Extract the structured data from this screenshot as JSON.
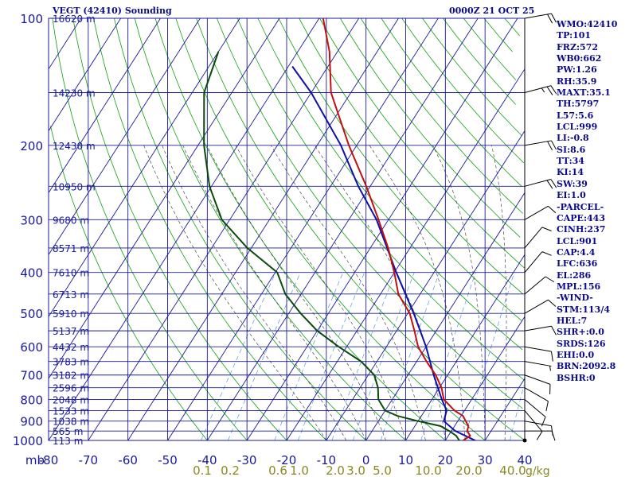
{
  "header": {
    "station": "VEGT (42410) Sounding",
    "time": "0000Z 21 OCT 25"
  },
  "indices": [
    "WMO:42410",
    "TP:101",
    "FRZ:572",
    "WB0:662",
    "PW:1.26",
    "RH:35.9",
    "MAXT:35.1",
    "TH:5797",
    "L57:5.6",
    "LCL:999",
    "LI:-0.8",
    "SI:8.6",
    "TT:34",
    "KI:14",
    "SW:39",
    "EI:1.0",
    "-PARCEL-",
    "CAPE:443",
    "CINH:237",
    "LCL:901",
    "CAP:4.4",
    "LFC:636",
    "EL:286",
    "MPL:156",
    "-WIND-",
    "STM:113/4",
    "HEL:7",
    "SHR+:0.0",
    "SRDS:126",
    "EHI:0.0",
    "BRN:2092.8",
    "BSHR:0"
  ],
  "colors": {
    "grid": "#1a1a9a",
    "axis_text": "#1a1a9a",
    "mixing_text": "#8a8a20",
    "dry_adiabat": "#10a010",
    "moist_adiabat": "#303030",
    "mixing_ratio": "#3a8ad8",
    "temperature": "#c01010",
    "dewpoint": "#0a4a0a",
    "parcel": "#1010a8",
    "wind": "#000000"
  },
  "chart_data": {
    "type": "skew-t",
    "x_unit_label": "mb",
    "pressure_levels": [
      100,
      200,
      300,
      400,
      500,
      600,
      700,
      800,
      900,
      1000
    ],
    "temperature_ticks": [
      -80,
      -70,
      -60,
      -50,
      -40,
      -30,
      -20,
      -10,
      0,
      10,
      20,
      30,
      40
    ],
    "temperature_range": [
      -80,
      40
    ],
    "pressure_range": [
      1000,
      100
    ],
    "height_labels": [
      {
        "p": 100,
        "label": "16620 m"
      },
      {
        "p": 150,
        "label": "14230 m"
      },
      {
        "p": 200,
        "label": "12430 m"
      },
      {
        "p": 250,
        "label": "10950 m"
      },
      {
        "p": 300,
        "label": "9680 m"
      },
      {
        "p": 350,
        "label": "8571 m"
      },
      {
        "p": 400,
        "label": "7610 m"
      },
      {
        "p": 450,
        "label": "6713 m"
      },
      {
        "p": 500,
        "label": "5910 m"
      },
      {
        "p": 550,
        "label": "5137 m"
      },
      {
        "p": 600,
        "label": "4432 m"
      },
      {
        "p": 650,
        "label": "3783 m"
      },
      {
        "p": 700,
        "label": "3182 m"
      },
      {
        "p": 750,
        "label": "2596 m"
      },
      {
        "p": 800,
        "label": "2048 m"
      },
      {
        "p": 850,
        "label": "1533 m"
      },
      {
        "p": 900,
        "label": "1038 m"
      },
      {
        "p": 950,
        "label": "565 m"
      },
      {
        "p": 1000,
        "label": "113 m"
      }
    ],
    "mixing_ratio_labels": [
      {
        "w": 0.1,
        "label": "0.1"
      },
      {
        "w": 0.2,
        "label": "0.2"
      },
      {
        "w": 0.6,
        "label": "0.6"
      },
      {
        "w": 1.0,
        "label": "1.0"
      },
      {
        "w": 2.0,
        "label": "2.0"
      },
      {
        "w": 3.0,
        "label": "3.0"
      },
      {
        "w": 5.0,
        "label": "5.0"
      },
      {
        "w": 10.0,
        "label": "10.0"
      },
      {
        "w": 20.0,
        "label": "20.0"
      },
      {
        "w": 40.0,
        "label": "40.0"
      }
    ],
    "mixing_ratio_unit": "g/kg",
    "temperature_profile": [
      {
        "p": 1000,
        "t": 24.5
      },
      {
        "p": 975,
        "t": 25.5
      },
      {
        "p": 950,
        "t": 24.0
      },
      {
        "p": 925,
        "t": 23.5
      },
      {
        "p": 900,
        "t": 22.0
      },
      {
        "p": 875,
        "t": 20.5
      },
      {
        "p": 850,
        "t": 17.5
      },
      {
        "p": 800,
        "t": 13.0
      },
      {
        "p": 750,
        "t": 10.5
      },
      {
        "p": 700,
        "t": 7.0
      },
      {
        "p": 650,
        "t": 2.5
      },
      {
        "p": 600,
        "t": -2.0
      },
      {
        "p": 550,
        "t": -5.5
      },
      {
        "p": 500,
        "t": -9.5
      },
      {
        "p": 450,
        "t": -15.5
      },
      {
        "p": 400,
        "t": -20.0
      },
      {
        "p": 350,
        "t": -25.5
      },
      {
        "p": 300,
        "t": -32.5
      },
      {
        "p": 250,
        "t": -41.0
      },
      {
        "p": 200,
        "t": -52.0
      },
      {
        "p": 150,
        "t": -65.0
      },
      {
        "p": 120,
        "t": -72.0
      },
      {
        "p": 100,
        "t": -79.0
      }
    ],
    "dewpoint_profile": [
      {
        "p": 1000,
        "t": 23.5
      },
      {
        "p": 975,
        "t": 22.0
      },
      {
        "p": 950,
        "t": 19.5
      },
      {
        "p": 925,
        "t": 16.5
      },
      {
        "p": 900,
        "t": 10.0
      },
      {
        "p": 875,
        "t": 4.0
      },
      {
        "p": 850,
        "t": 0.0
      },
      {
        "p": 800,
        "t": -3.5
      },
      {
        "p": 750,
        "t": -5.5
      },
      {
        "p": 700,
        "t": -8.5
      },
      {
        "p": 650,
        "t": -14.0
      },
      {
        "p": 600,
        "t": -22.0
      },
      {
        "p": 550,
        "t": -30.0
      },
      {
        "p": 500,
        "t": -37.0
      },
      {
        "p": 450,
        "t": -44.0
      },
      {
        "p": 400,
        "t": -49.5
      },
      {
        "p": 350,
        "t": -61.0
      },
      {
        "p": 300,
        "t": -72.0
      },
      {
        "p": 250,
        "t": -80.5
      },
      {
        "p": 200,
        "t": -88.5
      },
      {
        "p": 150,
        "t": -97.0
      },
      {
        "p": 120,
        "t": -100.0
      }
    ],
    "parcel_profile": [
      {
        "p": 1000,
        "t": 27.5
      },
      {
        "p": 950,
        "t": 21.0
      },
      {
        "p": 900,
        "t": 16.5
      },
      {
        "p": 850,
        "t": 15.5
      },
      {
        "p": 800,
        "t": 12.5
      },
      {
        "p": 700,
        "t": 6.5
      },
      {
        "p": 600,
        "t": 0.0
      },
      {
        "p": 500,
        "t": -8.5
      },
      {
        "p": 400,
        "t": -19.5
      },
      {
        "p": 300,
        "t": -33.0
      },
      {
        "p": 250,
        "t": -43.0
      },
      {
        "p": 200,
        "t": -54.0
      },
      {
        "p": 150,
        "t": -70.0
      },
      {
        "p": 130,
        "t": -79.0
      }
    ],
    "wind_profile": [
      {
        "p": 100,
        "dir": 80,
        "spd": 20
      },
      {
        "p": 150,
        "dir": 75,
        "spd": 25
      },
      {
        "p": 200,
        "dir": 80,
        "spd": 20
      },
      {
        "p": 250,
        "dir": 75,
        "spd": 20
      },
      {
        "p": 300,
        "dir": 60,
        "spd": 10
      },
      {
        "p": 350,
        "dir": 40,
        "spd": 10
      },
      {
        "p": 400,
        "dir": 40,
        "spd": 10
      },
      {
        "p": 450,
        "dir": 50,
        "spd": 10
      },
      {
        "p": 500,
        "dir": 60,
        "spd": 10
      },
      {
        "p": 550,
        "dir": 80,
        "spd": 10
      },
      {
        "p": 600,
        "dir": 100,
        "spd": 10
      },
      {
        "p": 650,
        "dir": 100,
        "spd": 5
      },
      {
        "p": 700,
        "dir": 110,
        "spd": 10
      },
      {
        "p": 750,
        "dir": 120,
        "spd": 10
      },
      {
        "p": 800,
        "dir": 130,
        "spd": 10
      },
      {
        "p": 850,
        "dir": 140,
        "spd": 10
      },
      {
        "p": 900,
        "dir": 100,
        "spd": 10
      },
      {
        "p": 950,
        "dir": 90,
        "spd": 10
      },
      {
        "p": 1000,
        "dir": 0,
        "spd": 0
      }
    ]
  }
}
